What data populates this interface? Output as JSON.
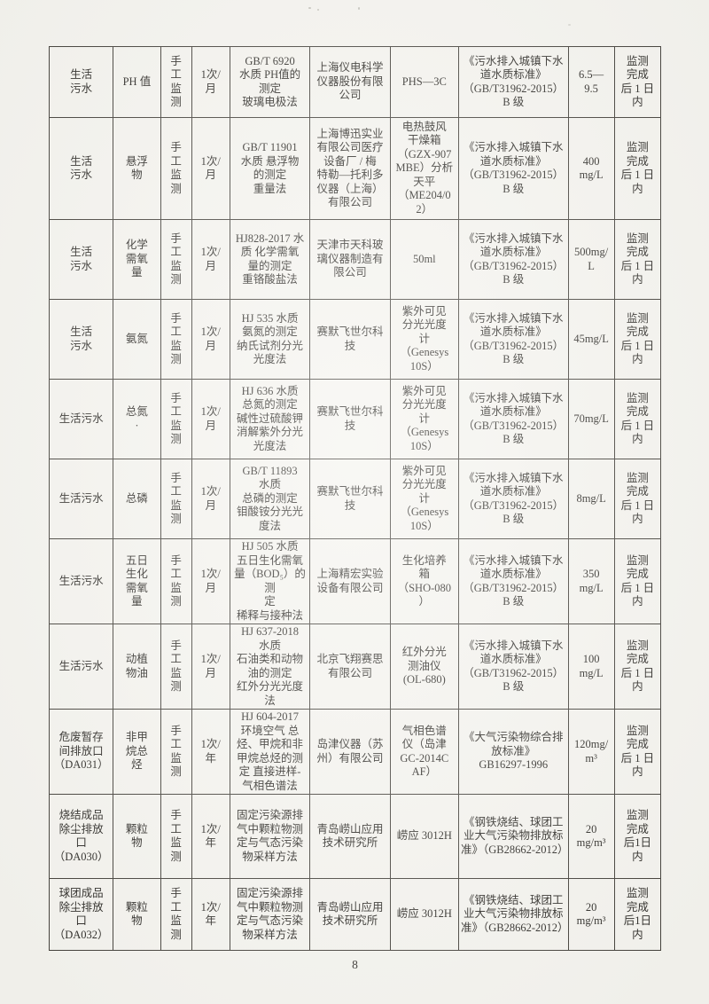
{
  "page": {
    "number": "8",
    "background": "#f5f4ef",
    "border_color": "#44413b"
  },
  "table": {
    "columns": [
      "point",
      "item",
      "type",
      "freq",
      "method",
      "company",
      "instrument",
      "standard",
      "limit",
      "deadline"
    ],
    "rows": [
      {
        "point": "生活\n污水",
        "item": "PH 值",
        "type": "手\n工\n监\n测",
        "freq": "1次/\n月",
        "method": "GB/T 6920\n水质 PH值的\n测定\n玻璃电极法",
        "company": "上海仪电科学\n仪器股份有限\n公司",
        "instrument": "PHS—3C",
        "standard": "《污水排入城镇下水\n道水质标准》\n（GB/T31962-2015）\nB 级",
        "limit": "6.5—\n9.5",
        "deadline": "监测\n完成\n后 1 日\n内"
      },
      {
        "point": "生活\n污水",
        "item": "悬浮\n物",
        "type": "手\n工\n监\n测",
        "freq": "1次/\n月",
        "method": "GB/T 11901\n水质 悬浮物\n的测定\n重量法",
        "company": "上海博迅实业\n有限公司医疗\n设备厂 / 梅\n特勒—托利多\n仪器（上海）\n有限公司",
        "instrument": "电热鼓风\n干燥箱\n（GZX-907\nMBE）分析\n天平\n（ME204/0\n2）",
        "standard": "《污水排入城镇下水\n道水质标准》\n（GB/T31962-2015）\nB 级",
        "limit": "400\nmg/L",
        "deadline": "监测\n完成\n后 1 日\n内"
      },
      {
        "point": "生活\n污水",
        "item": "化学\n需氧\n量",
        "type": "手\n工\n监\n测",
        "freq": "1次/\n月",
        "method": "HJ828-2017 水\n质 化学需氧\n量的测定\n重铬酸盐法",
        "company": "天津市天科玻\n璃仪器制造有\n限公司",
        "instrument": "50ml",
        "standard": "《污水排入城镇下水\n道水质标准》\n（GB/T31962-2015）\nB 级",
        "limit": "500mg/\nL",
        "deadline": "监测\n完成\n后 1 日\n内"
      },
      {
        "point": "生活\n污水",
        "item": "氨氮",
        "type": "手\n工\n监\n测",
        "freq": "1次/\n月",
        "method": "HJ 535 水质\n氨氮的测定\n纳氏试剂分光\n光度法",
        "company": "赛默飞世尔科\n技",
        "instrument": "紫外可见\n分光光度\n计\n（Genesys\n10S）",
        "standard": "《污水排入城镇下水\n道水质标准》\n（GB/T31962-2015）\nB 级",
        "limit": "45mg/L",
        "deadline": "监测\n完成\n后 1 日\n内"
      },
      {
        "point": "生活污水",
        "item": "总氮\n·",
        "type": "手\n工\n监\n测",
        "freq": "1次/\n月",
        "method": "HJ 636 水质\n总氮的测定\n碱性过硫酸钾\n消解紫外分光\n光度法",
        "company": "赛默飞世尔科\n技",
        "instrument": "紫外可见\n分光光度\n计\n（Genesys\n10S）",
        "standard": "《污水排入城镇下水\n道水质标准》\n（GB/T31962-2015）\nB 级",
        "limit": "70mg/L",
        "deadline": "监测\n完成\n后 1 日\n内"
      },
      {
        "point": "生活污水",
        "item": "总磷",
        "type": "手\n工\n监\n测",
        "freq": "1次/\n月",
        "method": "GB/T 11893\n水质\n总磷的测定\n钼酸铵分光光\n度法",
        "company": "赛默飞世尔科\n技",
        "instrument": "紫外可见\n分光光度\n计\n（Genesys\n10S）",
        "standard": "《污水排入城镇下水\n道水质标准》\n（GB/T31962-2015）\nB 级",
        "limit": "8mg/L",
        "deadline": "监测\n完成\n后 1 日\n内"
      },
      {
        "point": "生活污水",
        "item": "五日\n生化\n需氧\n量",
        "type": "手\n工\n监\n测",
        "freq": "1次/\n月",
        "method": "HJ 505 水质\n五日生化需氧\n量（BOD₅）的测\n定\n稀释与接种法",
        "company": "上海精宏实验\n设备有限公司",
        "instrument": "生化培养\n箱\n（SHO-080\n）",
        "standard": "《污水排入城镇下水\n道水质标准》\n（GB/T31962-2015）\nB 级",
        "limit": "350\nmg/L",
        "deadline": "监测\n完成\n后 1 日\n内"
      },
      {
        "point": "生活污水",
        "item": "动植\n物油",
        "type": "手\n工\n监\n测",
        "freq": "1次/\n月",
        "method": "HJ 637-2018\n水质\n石油类和动物\n油的测定\n红外分光光度\n法",
        "company": "北京飞翔赛思\n有限公司",
        "instrument": "红外分光\n测油仪\n(OL-680)",
        "standard": "《污水排入城镇下水\n道水质标准》\n（GB/T31962-2015）\nB 级",
        "limit": "100\nmg/L",
        "deadline": "监测\n完成\n后 1 日\n内"
      },
      {
        "point": "危废暂存\n间排放口\n（DA031）",
        "item": "非甲\n烷总\n烃",
        "type": "手\n工\n监\n测",
        "freq": "1次/\n年",
        "method": "HJ 604-2017\n环境空气 总\n烃、甲烷和非\n甲烷总烃的测\n定 直接进样-\n气相色谱法",
        "company": "岛津仪器（苏\n州）有限公司",
        "instrument": "气相色谱\n仪（岛津\nGC-2014C\nAF）",
        "standard": "《大气污染物综合排\n放标准》\nGB16297-1996",
        "limit": "120mg/\nm³",
        "deadline": "监测\n完成\n后 1 日\n内"
      },
      {
        "point": "烧结成品\n除尘排放\n口\n（DA030）",
        "item": "颗粒\n物",
        "type": "手\n工\n监\n测",
        "freq": "1次/\n年",
        "method": "固定污染源排\n气中颗粒物测\n定与气态污染\n物采样方法",
        "company": "青岛崂山应用\n技术研究所",
        "instrument": "崂应 3012H",
        "standard": "《钢铁烧结、球团工\n业大气污染物排放标\n准》（GB28662-2012）",
        "limit": "20\nmg/m³",
        "deadline": "监测\n完成\n后1日\n内"
      },
      {
        "point": "球团成品\n除尘排放\n口\n（DA032）",
        "item": "颗粒\n物",
        "type": "手\n工\n监\n测",
        "freq": "1次/\n年",
        "method": "固定污染源排\n气中颗粒物测\n定与气态污染\n物采样方法",
        "company": "青岛崂山应用\n技术研究所",
        "instrument": "崂应 3012H",
        "standard": "《钢铁烧结、球团工\n业大气污染物排放标\n准》（GB28662-2012）",
        "limit": "20\nmg/m³",
        "deadline": "监测\n完成\n后1日\n内"
      }
    ]
  }
}
